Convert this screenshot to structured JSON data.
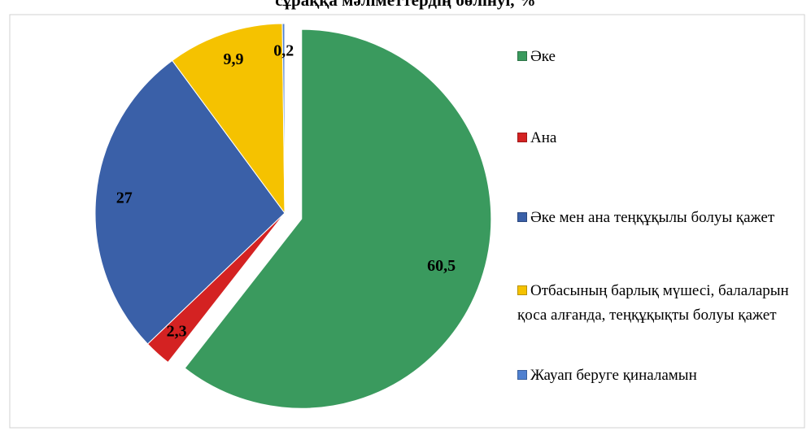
{
  "chart_data": {
    "type": "pie",
    "title": "сұраққа мәліметтердің бөлінуі, %",
    "categories": [
      "Әке",
      "Ана",
      "Әке мен ана теңқұқылы болуы қажет",
      "Отбасының барлық мүшесі, балаларын қоса алғанда, теңқұқықты болуы қажет",
      "Жауап беруге қиналамын"
    ],
    "values": [
      60.5,
      2.3,
      27,
      9.9,
      0.2
    ],
    "value_labels": [
      "60,5",
      "2,3",
      "27",
      "9,9",
      "0,2"
    ],
    "colors": [
      "#3a9a5e",
      "#d42222",
      "#3a60a8",
      "#f5c200",
      "#4f80d0"
    ]
  }
}
